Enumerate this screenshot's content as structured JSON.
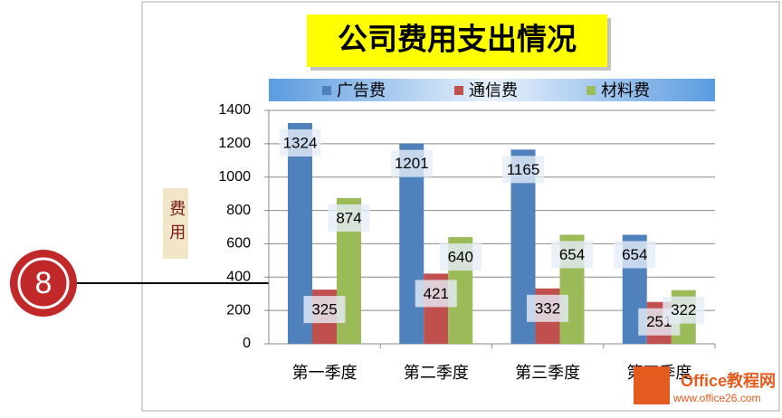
{
  "chart_data": {
    "type": "bar",
    "title": "公司费用支出情况",
    "y_label": "费用",
    "categories": [
      "第一季度",
      "第二季度",
      "第三季度",
      "第四季度"
    ],
    "series": [
      {
        "name": "广告费",
        "color": "#4f81bd",
        "values": [
          1324,
          1201,
          1165,
          654
        ]
      },
      {
        "name": "通信费",
        "color": "#c0504d",
        "values": [
          325,
          421,
          332,
          251
        ]
      },
      {
        "name": "材料费",
        "color": "#9bbb59",
        "values": [
          874,
          640,
          654,
          322
        ]
      }
    ],
    "ylim": [
      0,
      1400
    ],
    "yticks": [
      0,
      200,
      400,
      600,
      800,
      1000,
      1200,
      1400
    ],
    "grid": true
  },
  "callout": "8",
  "watermark": {
    "brand": "Office教程网",
    "url": "www.office26.com"
  }
}
